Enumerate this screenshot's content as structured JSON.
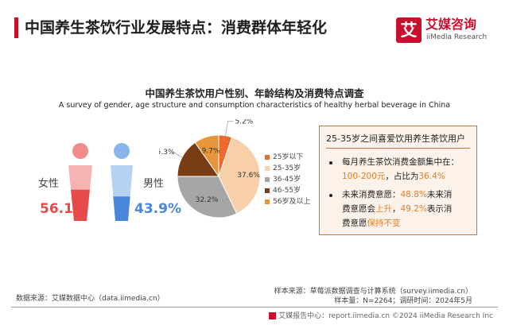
{
  "header": {
    "title": "中国养生茶饮行业发展特点：消费群体年轻化",
    "logo_mark": "艾",
    "logo_cn": "艾媒咨询",
    "logo_en": "iiMedia Research"
  },
  "chart_data": [
    {
      "type": "bar",
      "title": "中国养生茶饮用户性别、年龄结构及消费特点调查",
      "subtitle": "A survey of gender, age structure and consumption characteristics of healthy herbal beverage in China",
      "categories": [
        "女性",
        "男性"
      ],
      "values": [
        56.1,
        43.9
      ],
      "value_labels": [
        "56.1%",
        "43.9%"
      ],
      "colors": [
        "#e84a4a",
        "#4a86d9"
      ],
      "track_colors": [
        "#f5b3b3",
        "#b5d1f4"
      ],
      "ylim": [
        0,
        100
      ]
    },
    {
      "type": "pie",
      "categories": [
        "25岁以下",
        "25-35岁",
        "36-45岁",
        "46-55岁",
        "56岁及以上"
      ],
      "values": [
        5.2,
        37.6,
        32.2,
        15.3,
        9.7
      ],
      "value_labels": [
        "5.2%",
        "37.6%",
        "32.2%",
        "15.3%",
        "9.7%"
      ],
      "colors": [
        "#ec6a2e",
        "#f7cfa8",
        "#a6a6a6",
        "#7a3c12",
        "#e69538"
      ],
      "legend_position": "right"
    }
  ],
  "info_box": {
    "heading": "25-35岁之间喜爱饮用养生茶饮用户",
    "b1_l1": "每月养生茶饮消费金额集中在：",
    "b1_range": "100-200元",
    "b1_mid": "，占比为",
    "b1_pct": "36.4%",
    "b2_lead": "未来消费意愿：",
    "b2_pct1": "48.8%",
    "b2_tail1": "未来消",
    "b2_l2a": "费意愿会",
    "b2_up": "上升",
    "b2_l2b": "，",
    "b2_pct2": "49.2%",
    "b2_tail2": "表示消",
    "b2_l3a": "费意愿",
    "b2_same": "保持不变"
  },
  "source": {
    "data_source": "数据来源：艾媒数据中心（data.iimedia.cn）",
    "sample_source": "样本来源：草莓派数据调查与计算系统（survey.iimedia.cn）",
    "sample_size": "样本量：N=2264；调研时间：2024年5月"
  },
  "footer": {
    "text": "艾媒报告中心：report.iimedia.cn  ©2024  iiMedia Research  Inc"
  }
}
